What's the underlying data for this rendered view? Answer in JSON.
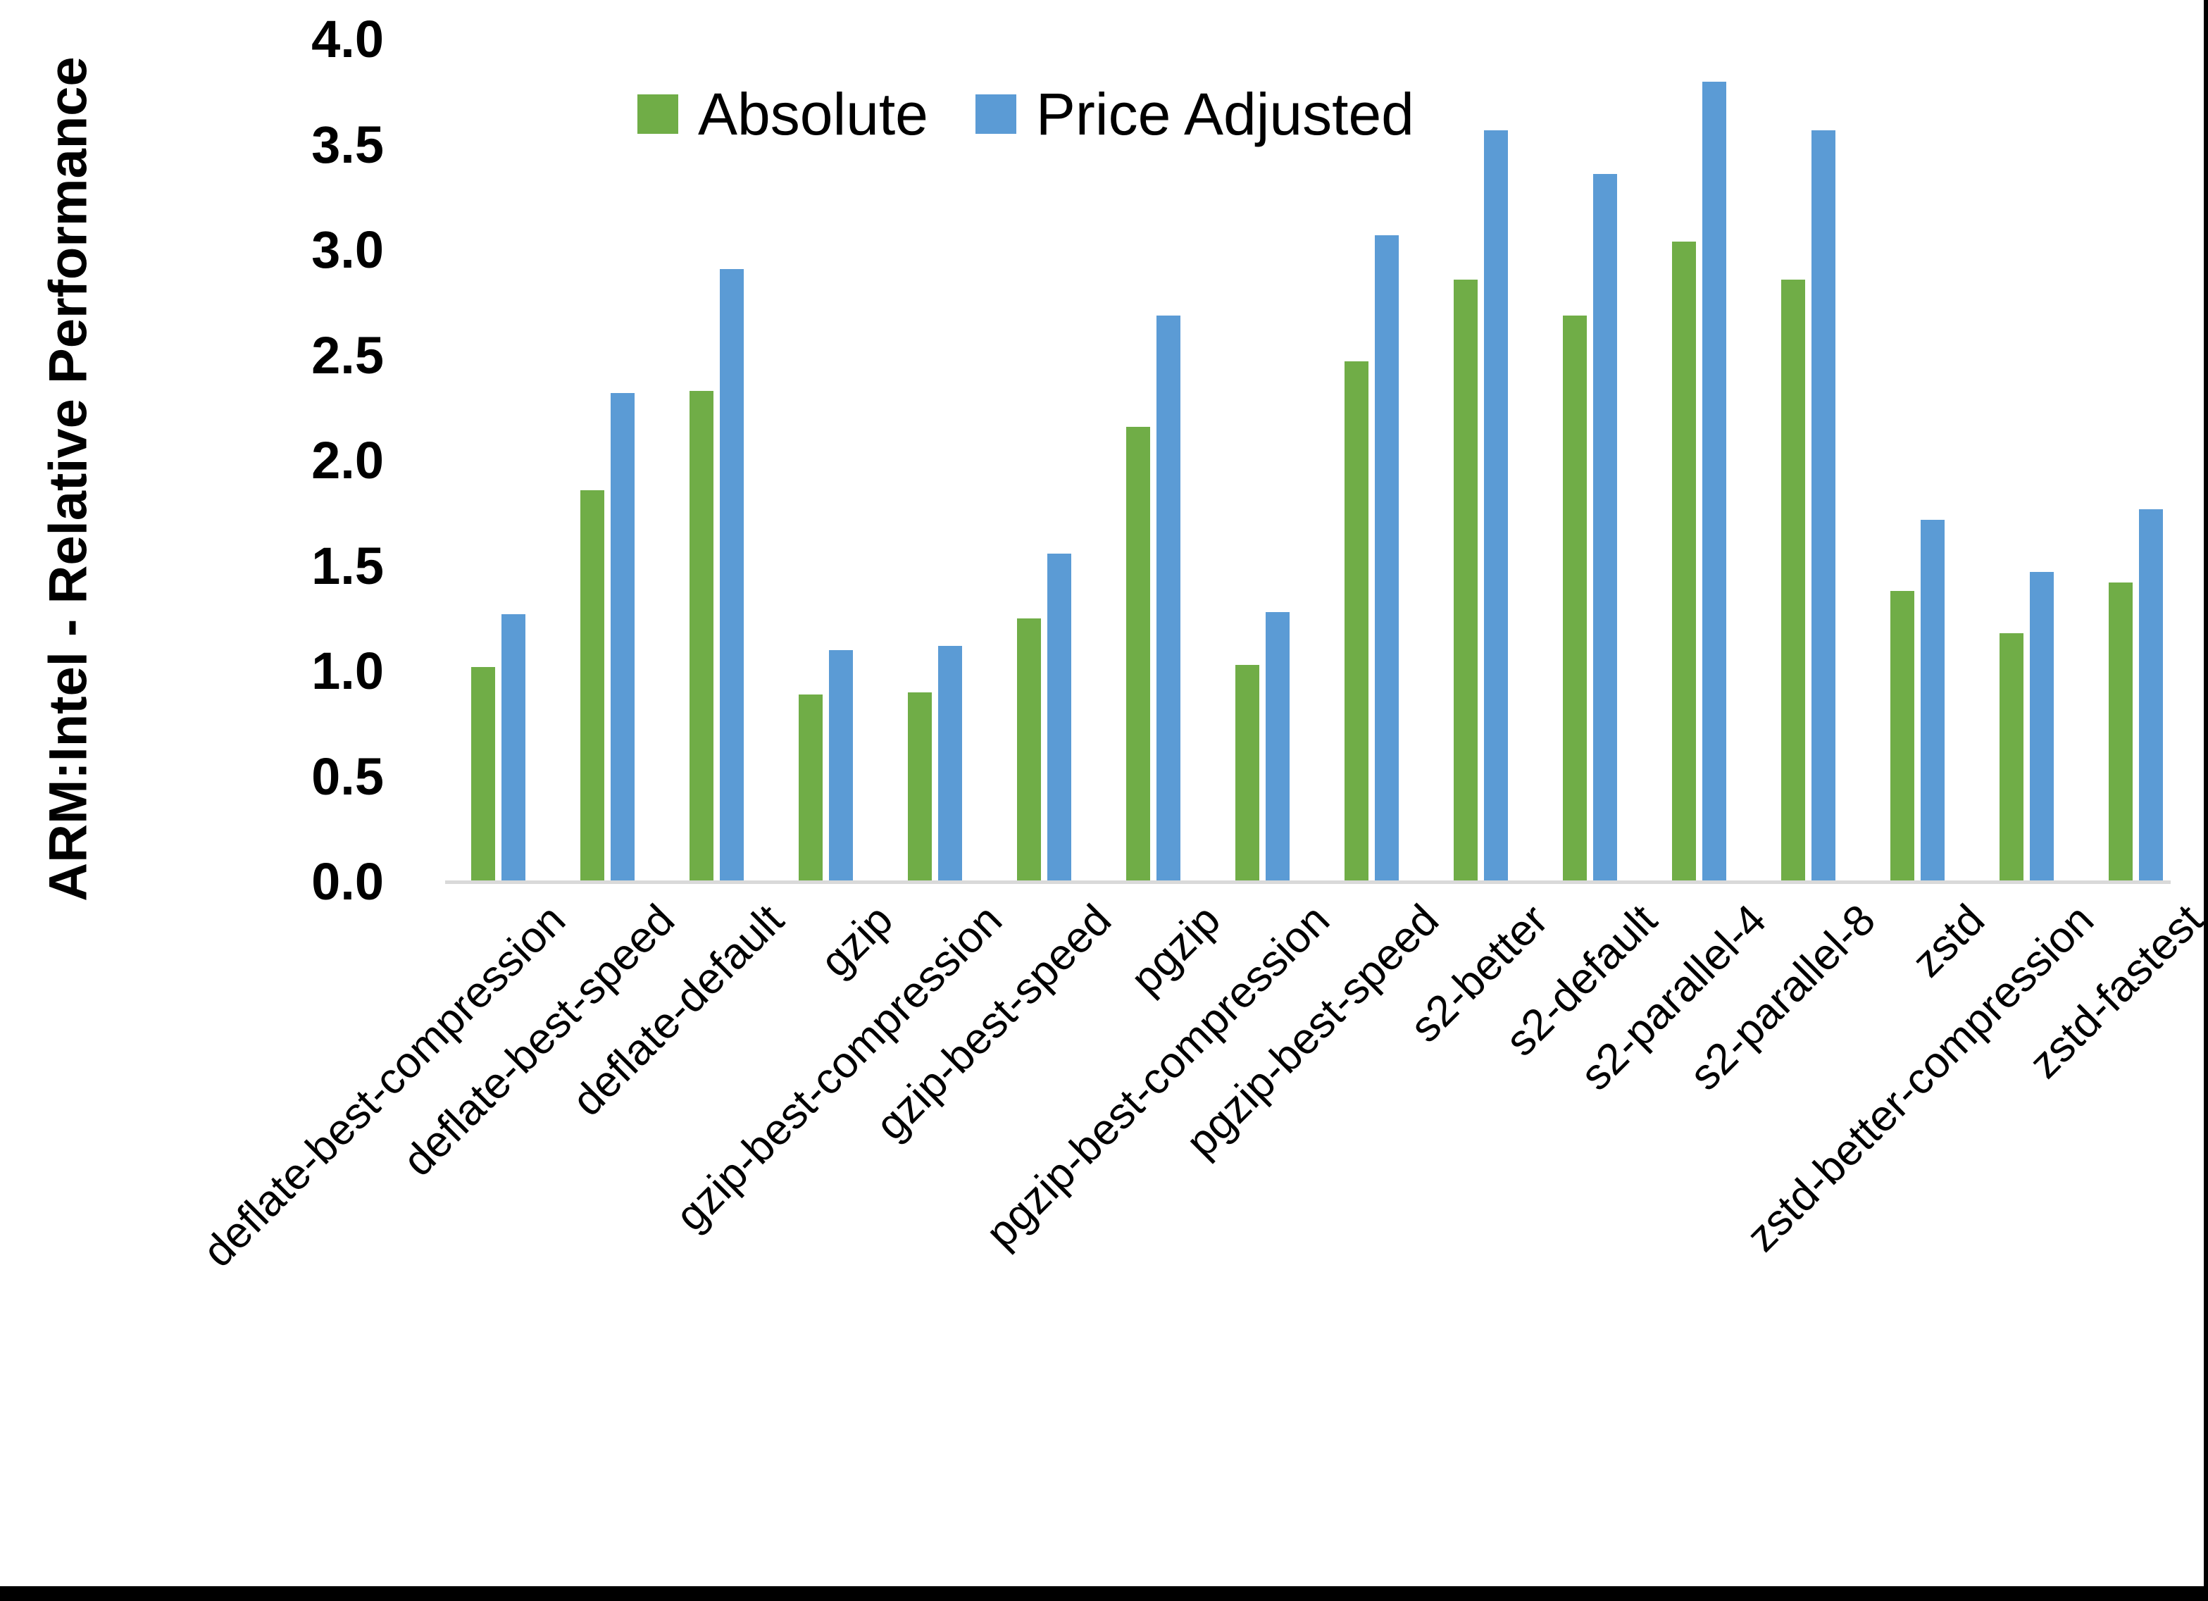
{
  "chart_data": {
    "type": "bar",
    "title": "",
    "xlabel": "",
    "ylabel": "ARM:Intel - Relative Performance",
    "ylim": [
      0.0,
      4.0
    ],
    "ytick_step": 0.5,
    "ytick_labels": [
      "0.0",
      "0.5",
      "1.0",
      "1.5",
      "2.0",
      "2.5",
      "3.0",
      "3.5",
      "4.0"
    ],
    "grid": false,
    "legend_position": "top-center",
    "categories": [
      "deflate-best-compression",
      "deflate-best-speed",
      "deflate-default",
      "gzip",
      "gzip-best-compression",
      "gzip-best-speed",
      "pgzip",
      "pgzip-best-compression",
      "pgzip-best-speed",
      "s2-better",
      "s2-default",
      "s2-parallel-4",
      "s2-parallel-8",
      "zstd",
      "zstd-better-compression",
      "zstd-fastest"
    ],
    "series": [
      {
        "name": "Absolute",
        "color": "#70AD47",
        "values": [
          1.02,
          1.86,
          2.33,
          0.89,
          0.9,
          1.25,
          2.16,
          1.03,
          2.47,
          2.86,
          2.69,
          3.04,
          2.86,
          1.38,
          1.18,
          1.42
        ]
      },
      {
        "name": "Price Adjusted",
        "color": "#5B9BD5",
        "values": [
          1.27,
          2.32,
          2.91,
          1.1,
          1.12,
          1.56,
          2.69,
          1.28,
          3.07,
          3.57,
          3.36,
          3.8,
          3.57,
          1.72,
          1.47,
          1.77
        ]
      }
    ]
  },
  "colors": {
    "background": "#FFFFFF",
    "axis_line": "#D9D9D9",
    "text": "#000000",
    "border": "#000000",
    "series_absolute": "#70AD47",
    "series_price_adjusted": "#5B9BD5"
  }
}
